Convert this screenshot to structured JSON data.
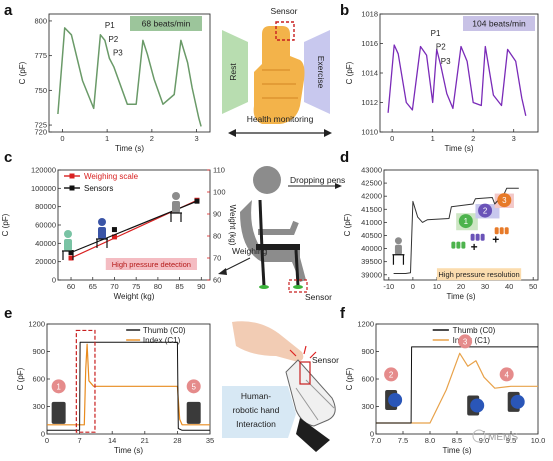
{
  "panel_labels": [
    "a",
    "b",
    "c",
    "d",
    "e",
    "f"
  ],
  "chart_data": [
    {
      "id": "a",
      "type": "line",
      "xlabel": "Time (s)",
      "ylabel": "C (pF)",
      "xlim": [
        -0.3,
        3.3
      ],
      "ylim": [
        720,
        805
      ],
      "xticks": [
        0,
        1,
        2,
        3
      ],
      "yticks": [
        720,
        725,
        750,
        775,
        800
      ],
      "tick_labels_y": [
        "720",
        "725",
        "750",
        "775",
        "800"
      ],
      "badge": "68 beats/min",
      "badge_color": "#9cc59b",
      "color": "#6a9a68",
      "peak_labels": [
        "P1",
        "P2",
        "P3"
      ],
      "series": [
        {
          "x": [
            -0.1,
            0.05,
            0.2,
            0.45,
            0.7,
            0.85,
            0.95,
            1.05,
            1.15,
            1.45,
            1.65,
            1.8,
            1.9,
            2.05,
            2.25,
            2.5,
            2.65,
            2.8,
            2.9,
            3.05,
            3.1
          ],
          "values": [
            733,
            795,
            790,
            757,
            737,
            790,
            786,
            773,
            767,
            740,
            740,
            786,
            776,
            758,
            740,
            747,
            786,
            770,
            752,
            730,
            724
          ]
        }
      ]
    },
    {
      "id": "b",
      "type": "line",
      "xlabel": "Time (s)",
      "ylabel": "C (pF)",
      "xlim": [
        -0.3,
        3.6
      ],
      "ylim": [
        1010,
        1018
      ],
      "xticks": [
        0,
        1,
        2,
        3
      ],
      "yticks": [
        1010,
        1012,
        1014,
        1016,
        1018
      ],
      "badge": "104 beats/min",
      "badge_color": "#c8c2e6",
      "color": "#7a2bb8",
      "peak_labels": [
        "P1",
        "P2",
        "P3"
      ],
      "series": [
        {
          "x": [
            -0.1,
            0.05,
            0.15,
            0.35,
            0.5,
            0.7,
            0.85,
            1.0,
            1.1,
            1.2,
            1.35,
            1.5,
            1.7,
            1.85,
            2.0,
            2.2,
            2.3,
            2.5,
            2.7,
            2.85,
            3.05,
            3.2,
            3.3
          ],
          "values": [
            1011.3,
            1015.9,
            1015.3,
            1012.0,
            1011.5,
            1015.8,
            1015.2,
            1012.0,
            1015.6,
            1014.5,
            1012.6,
            1011.6,
            1015.8,
            1014.8,
            1012.0,
            1011.8,
            1015.8,
            1012.5,
            1011.8,
            1015.6,
            1014.8,
            1012.3,
            1011.1
          ]
        }
      ]
    },
    {
      "id": "c",
      "type": "scatter",
      "xlabel": "Weight (kg)",
      "ylabel": "C (pF)",
      "ylabel_right": "Weight (kg)",
      "xlim": [
        57,
        92
      ],
      "ylim": [
        0,
        120000
      ],
      "ylim_right": [
        60,
        110
      ],
      "xticks": [
        60,
        65,
        70,
        75,
        80,
        85,
        90
      ],
      "yticks": [
        0,
        20000,
        40000,
        60000,
        80000,
        100000,
        120000
      ],
      "yticks_right": [
        60,
        70,
        80,
        90,
        100,
        110
      ],
      "series": [
        {
          "name": "Weighing scale",
          "color": "#d82020",
          "x": [
            60,
            70,
            89
          ],
          "values": [
            24000,
            47000,
            87000
          ]
        },
        {
          "name": "Sensors",
          "color": "#111111",
          "x": [
            60,
            70,
            89
          ],
          "values": [
            30000,
            55000,
            86000
          ]
        }
      ],
      "annotation": "High pressure detection"
    },
    {
      "id": "d",
      "type": "line",
      "xlabel": "Time (s)",
      "ylabel": "C (pF)",
      "xlim": [
        -12,
        52
      ],
      "ylim": [
        38800,
        43000
      ],
      "xticks": [
        -10,
        0,
        10,
        20,
        30,
        40,
        50
      ],
      "yticks": [
        39000,
        39500,
        40000,
        40500,
        41000,
        41500,
        42000,
        42500,
        43000
      ],
      "color": "#333333",
      "annotation": "High pressure resolution",
      "step_labels": [
        "1",
        "2",
        "3"
      ],
      "series": [
        {
          "x": [
            -8,
            -3,
            -1,
            0,
            1,
            2,
            4,
            5,
            6,
            15,
            16,
            25,
            26,
            33,
            34,
            38,
            39,
            44
          ],
          "values": [
            39050,
            39050,
            39080,
            41800,
            41500,
            41200,
            41000,
            41050,
            41100,
            41150,
            41600,
            41700,
            41900,
            41950,
            41700,
            42100,
            42300,
            42300
          ]
        }
      ]
    },
    {
      "id": "e",
      "type": "line",
      "xlabel": "Time (s)",
      "ylabel": "C (pF)",
      "xlim": [
        0,
        35
      ],
      "ylim": [
        0,
        1200
      ],
      "xticks": [
        0,
        7,
        14,
        21,
        28,
        35
      ],
      "yticks": [
        0,
        300,
        600,
        900,
        1200
      ],
      "series": [
        {
          "name": "Thumb (C0)",
          "color": "#111111",
          "x": [
            0,
            7,
            7.1,
            28,
            28.2,
            29,
            35
          ],
          "values": [
            40,
            40,
            1000,
            1000,
            60,
            40,
            40
          ]
        },
        {
          "name": "Index (C1)",
          "color": "#e88b1e",
          "x": [
            0,
            8,
            8.3,
            8.6,
            9,
            10,
            28,
            28.5,
            29,
            35
          ],
          "values": [
            100,
            100,
            700,
            980,
            580,
            520,
            520,
            160,
            100,
            100
          ]
        }
      ],
      "step_labels": [
        "1",
        "5"
      ]
    },
    {
      "id": "f",
      "type": "line",
      "xlabel": "Time (s)",
      "ylabel": "C (pF)",
      "xlim": [
        7.0,
        10.0
      ],
      "ylim": [
        0,
        1200
      ],
      "xticks": [
        7.0,
        7.5,
        8.0,
        8.5,
        9.0,
        9.5,
        10.0
      ],
      "tick_labels_x": [
        "7.0",
        "7.5",
        "8.0",
        "8.5",
        "9.0",
        "9.5",
        "10.0"
      ],
      "yticks": [
        0,
        300,
        600,
        900,
        1200
      ],
      "series": [
        {
          "name": "Thumb (C0)",
          "color": "#111111",
          "x": [
            7.0,
            7.65,
            7.66,
            10.0
          ],
          "values": [
            120,
            120,
            950,
            950
          ]
        },
        {
          "name": "Index (C1)",
          "color": "#e8a24a",
          "x": [
            7.0,
            8.0,
            8.3,
            8.55,
            8.7,
            8.85,
            9.0,
            9.2,
            9.5,
            10.0
          ],
          "values": [
            120,
            120,
            480,
            880,
            740,
            800,
            620,
            500,
            520,
            520
          ]
        }
      ],
      "step_labels": [
        "2",
        "3",
        "4"
      ]
    }
  ],
  "diagrams": {
    "hand_sensor_label": "Sensor",
    "rest_label": "Rest",
    "exercise_label": "Exercise",
    "health_label": "Health monitoring",
    "dropping_label": "Dropping pens",
    "weighing_label": "Weighing",
    "sensor_label_c": "Sensor",
    "sensor_label_e": "Sensor",
    "interaction_lines": [
      "Human-",
      "robotic hand",
      "Interaction"
    ],
    "watermark": "MEMS"
  }
}
